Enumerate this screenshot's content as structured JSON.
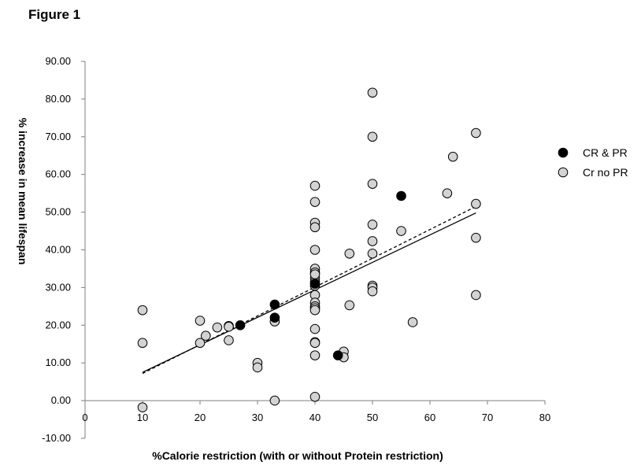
{
  "figure_title": "Figure 1",
  "chart_data": {
    "type": "scatter",
    "xlabel": "%Calorie restriction (with or without Protein restriction)",
    "ylabel": "% increase in mean lifespan",
    "xlim": [
      0,
      80
    ],
    "ylim": [
      -10,
      90
    ],
    "xticks": [
      0,
      10,
      20,
      30,
      40,
      50,
      60,
      70,
      80
    ],
    "yticks": [
      -10,
      0,
      10,
      20,
      30,
      40,
      50,
      60,
      70,
      80,
      90
    ],
    "ytick_labels": [
      "-10.00",
      "0.00",
      "10.00",
      "20.00",
      "30.00",
      "40.00",
      "50.00",
      "60.00",
      "70.00",
      "80.00",
      "90.00"
    ],
    "grid": false,
    "legend_position": "right",
    "series": [
      {
        "name": "CR & PR",
        "color": "#000000",
        "x": [
          27,
          33,
          33,
          40,
          44,
          55
        ],
        "y": [
          20,
          25.5,
          22,
          31,
          12,
          54.3
        ]
      },
      {
        "name": "Cr no PR",
        "color": "#d3d3d3",
        "x": [
          10,
          10,
          10,
          20,
          20,
          21,
          23,
          25,
          25,
          25,
          30,
          30,
          33,
          33,
          40,
          40,
          40,
          40,
          40,
          40,
          40,
          40,
          40,
          40,
          40,
          40,
          40,
          40,
          40,
          40,
          40,
          40,
          40,
          40,
          40,
          45,
          45,
          46,
          46,
          50,
          50,
          50,
          50,
          50,
          50,
          50,
          50,
          50,
          55,
          57,
          63,
          64,
          68,
          68,
          68,
          68
        ],
        "y": [
          24,
          15.3,
          -1.8,
          21.2,
          15.3,
          17.2,
          19.4,
          19.8,
          19.6,
          16,
          10,
          8.8,
          21,
          0,
          57,
          52.7,
          47.2,
          46,
          40,
          35,
          34,
          32.5,
          31.5,
          28,
          26,
          25,
          24.5,
          24,
          19,
          15.5,
          15.3,
          12,
          1,
          33.5,
          30.5,
          13,
          11.5,
          39,
          25.3,
          81.7,
          70,
          57.5,
          46.7,
          42.3,
          39,
          30.5,
          30,
          29,
          45,
          20.8,
          55,
          64.7,
          71,
          52.2,
          43.2,
          28
        ]
      }
    ],
    "trendlines": [
      {
        "style": "solid",
        "x": [
          10,
          68
        ],
        "y": [
          7.5,
          49.8
        ]
      },
      {
        "style": "dashed",
        "x": [
          10,
          68
        ],
        "y": [
          7.2,
          51.5
        ]
      }
    ]
  }
}
